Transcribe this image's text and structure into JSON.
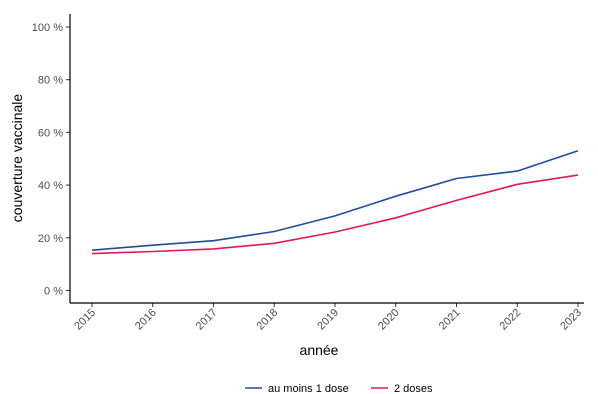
{
  "chart_data": {
    "type": "line",
    "xlabel": "année",
    "ylabel": "couverture vaccinale",
    "x": [
      "2015",
      "2016",
      "2017",
      "2018",
      "2019",
      "2020",
      "2021",
      "2022",
      "2023"
    ],
    "ylim": [
      0,
      100
    ],
    "y_ticks": [
      "0 %",
      "20 %",
      "40 %",
      "60 %",
      "80 %",
      "100 %"
    ],
    "y_tick_values": [
      0,
      20,
      40,
      60,
      80,
      100
    ],
    "grid": false,
    "legend_position": "bottom",
    "series": [
      {
        "name": "au moins 1 dose",
        "color": "#1f4e97",
        "values": [
          15.3,
          17.2,
          18.9,
          22.4,
          28.3,
          35.8,
          42.5,
          45.3,
          53.0
        ]
      },
      {
        "name": "2 doses",
        "color": "#e0195f",
        "values": [
          14.0,
          14.8,
          15.8,
          17.9,
          22.2,
          27.6,
          34.2,
          40.3,
          43.8
        ]
      }
    ]
  }
}
